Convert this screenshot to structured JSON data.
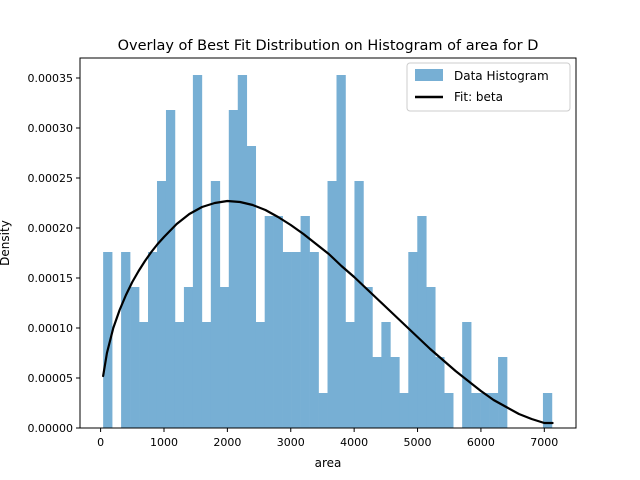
{
  "chart_data": {
    "type": "bar",
    "title": "Overlay of Best Fit Distribution on Histogram of area for D",
    "xlabel": "area",
    "ylabel": "Density",
    "xlim": [
      -325,
      7500
    ],
    "ylim": [
      0,
      0.00037
    ],
    "xticks": [
      0,
      1000,
      2000,
      3000,
      4000,
      5000,
      6000,
      7000
    ],
    "xtick_labels": [
      "0",
      "1000",
      "2000",
      "3000",
      "4000",
      "5000",
      "6000",
      "7000"
    ],
    "yticks": [
      0,
      5e-05,
      0.0001,
      0.00015,
      0.0002,
      0.00025,
      0.0003,
      0.00035
    ],
    "ytick_labels": [
      "0.00000",
      "0.00005",
      "0.00010",
      "0.00015",
      "0.00020",
      "0.00025",
      "0.00030",
      "0.00035"
    ],
    "grid": false,
    "legend_position": "upper right",
    "legend": [
      {
        "label": "Data Histogram",
        "kind": "patch",
        "color": "#77afd4"
      },
      {
        "label": "Fit: beta",
        "kind": "line",
        "color": "#000000"
      }
    ],
    "histogram": {
      "name": "Data Histogram",
      "color": "#77afd4",
      "bin_start": 40,
      "bin_width": 141.6,
      "densities": [
        0.000176,
        0,
        0.000176,
        0.000141,
        0.000106,
        0.000176,
        0.000247,
        0.000318,
        0.000106,
        0.000141,
        0.000353,
        0.000106,
        0.000247,
        0.000141,
        0.000318,
        0.000353,
        0.000282,
        0.000106,
        0.000212,
        0.000212,
        0.000176,
        0.000176,
        0.000212,
        0.000176,
        3.5e-05,
        0.000247,
        0.000353,
        0.000106,
        0.000247,
        0.000141,
        7.1e-05,
        0.000106,
        7.1e-05,
        3.5e-05,
        0.000176,
        0.000212,
        0.000141,
        7.1e-05,
        3.5e-05,
        0,
        0.000106,
        3.5e-05,
        3.5e-05,
        3.5e-05,
        7.1e-05,
        0,
        0,
        0,
        0,
        3.5e-05
      ]
    },
    "fit_curve": {
      "name": "Fit: beta",
      "color": "#000000",
      "x": [
        40,
        100,
        200,
        300,
        400,
        500,
        600,
        700,
        800,
        900,
        1000,
        1200,
        1400,
        1600,
        1800,
        2000,
        2200,
        2400,
        2600,
        2800,
        3000,
        3200,
        3400,
        3600,
        3800,
        4000,
        4200,
        4400,
        4600,
        4800,
        5000,
        5200,
        5400,
        5600,
        5800,
        6000,
        6200,
        6400,
        6600,
        6800,
        7000,
        7130
      ],
      "y": [
        5.2e-05,
        7.5e-05,
        0.0001,
        0.000118,
        0.000133,
        0.000146,
        0.000157,
        0.000167,
        0.000176,
        0.000184,
        0.000191,
        0.000204,
        0.000214,
        0.000221,
        0.000225,
        0.000227,
        0.000226,
        0.000223,
        0.000218,
        0.000211,
        0.000203,
        0.000194,
        0.000184,
        0.000174,
        0.000162,
        0.000151,
        0.000139,
        0.000127,
        0.000115,
        0.000103,
        9.1e-05,
        7.9e-05,
        6.8e-05,
        5.7e-05,
        4.7e-05,
        3.7e-05,
        2.8e-05,
        2.1e-05,
        1.4e-05,
        9e-06,
        5e-06,
        5e-06
      ]
    }
  }
}
